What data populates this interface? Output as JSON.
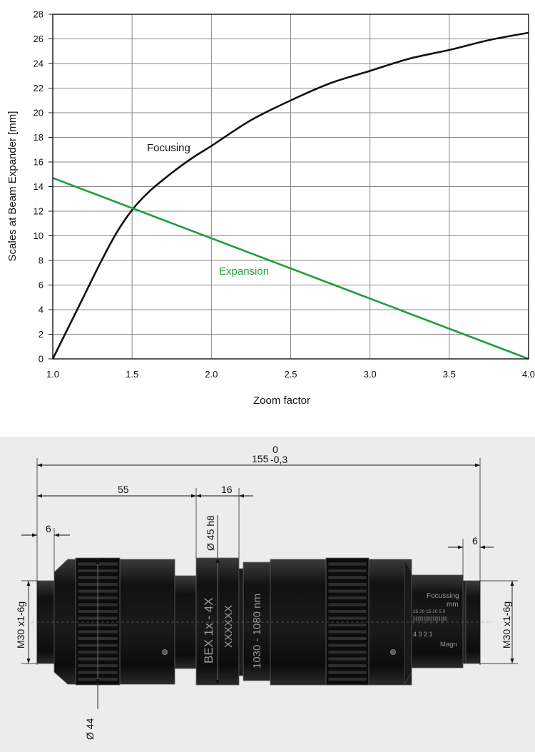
{
  "chart_data": {
    "type": "line",
    "xlabel": "Zoom factor",
    "ylabel": "Scales at Beam Expander [mm]",
    "xlim": [
      1.0,
      4.0
    ],
    "ylim": [
      0,
      28
    ],
    "x_ticks": [
      "1.0",
      "1.5",
      "2.0",
      "2.5",
      "3.0",
      "3.5",
      "4.0"
    ],
    "y_ticks": [
      "0",
      "2",
      "4",
      "6",
      "8",
      "10",
      "12",
      "14",
      "16",
      "18",
      "20",
      "22",
      "24",
      "26",
      "28"
    ],
    "grid": true,
    "series": [
      {
        "name": "Focusing",
        "color": "#111111",
        "x": [
          1.0,
          1.1,
          1.2,
          1.3,
          1.4,
          1.5,
          1.6,
          1.7,
          1.8,
          1.9,
          2.0,
          2.25,
          2.5,
          2.75,
          3.0,
          3.25,
          3.5,
          3.75,
          4.0
        ],
        "y": [
          0,
          2.6,
          5.2,
          7.8,
          10.2,
          12.1,
          13.5,
          14.6,
          15.6,
          16.5,
          17.3,
          19.4,
          21.0,
          22.4,
          23.4,
          24.4,
          25.1,
          25.9,
          26.5
        ]
      },
      {
        "name": "Expansion",
        "color": "#1e9e3e",
        "x": [
          1.0,
          4.0
        ],
        "y": [
          14.7,
          0
        ]
      }
    ]
  },
  "drawing": {
    "overall_length": "155",
    "overall_tol_upper": "0",
    "overall_tol_lower": "-0,3",
    "dim_55": "55",
    "dim_16": "16",
    "dim_6_left": "6",
    "dim_6_right": "6",
    "thread_left": "M30 x1-6g",
    "thread_right": "M30 x1-6g",
    "collar_diameter": "Ø 45 h8",
    "body_diameter": "Ø 44",
    "engrave_bex": "BEX 1x - 4X",
    "engrave_serial": "XXXXXX",
    "engrave_wavelength": "1030 - 1080 nm",
    "focussing_label": "Focussing",
    "focussing_unit": "mm",
    "focus_scale": "25 20 15 10 5  0",
    "magn_scale": "4 3 2     1",
    "magn_label": "Magn"
  }
}
